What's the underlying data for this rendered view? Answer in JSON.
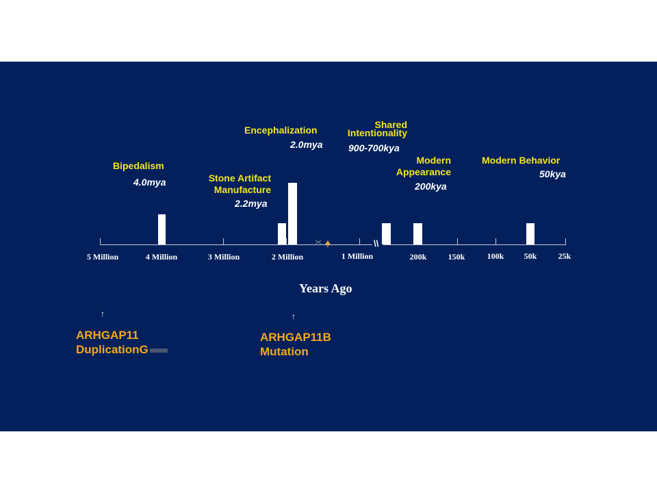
{
  "axis": {
    "label": "Years Ago",
    "ticks": [
      "5 Million",
      "4 Million",
      "3 Million",
      "2 Million",
      "1 Million",
      "200k",
      "150k",
      "100k",
      "50k",
      "25k"
    ],
    "break_mark": "\\\\"
  },
  "events": {
    "bipedalism": {
      "title": "Bipedalism",
      "date": "4.0mya"
    },
    "stone_artifact": {
      "title_line1": "Stone Artifact",
      "title_line2": "Manufacture",
      "date": "2.2mya"
    },
    "encephalization": {
      "title": "Encephalization",
      "date": "2.0mya"
    },
    "shared_intentionality": {
      "title_line1": "Shared",
      "title_line2": "Intentionality",
      "date": "900-700kya"
    },
    "modern_appearance": {
      "title_line1": "Modern",
      "title_line2": "Appearance",
      "date": "200kya"
    },
    "modern_behavior": {
      "title": "Modern Behavior",
      "date": "50kya"
    }
  },
  "genes": {
    "duplication": {
      "line1": "ARHGAP11",
      "line2": "DuplicationG",
      "arrow": "↑"
    },
    "mutation": {
      "line1": "ARHGAP11B",
      "line2": "Mutation",
      "arrow": "↑"
    }
  },
  "colors": {
    "background": "#03205c",
    "title": "#f5e61c",
    "gene": "#f3a81c"
  }
}
